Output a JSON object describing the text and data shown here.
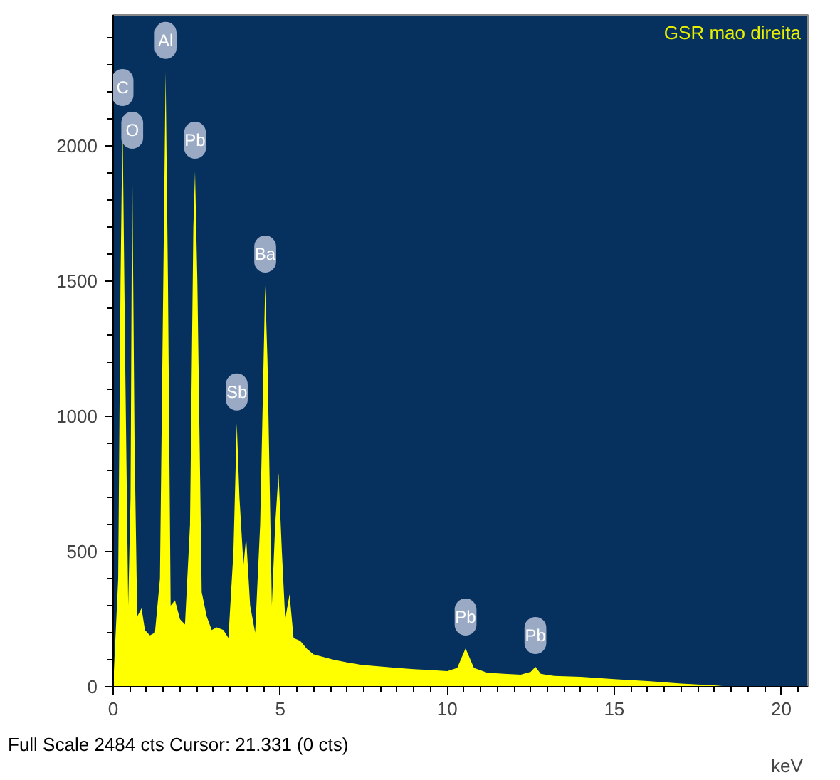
{
  "chart_data": {
    "type": "area",
    "title": "GSR mao direita",
    "xlabel": "keV",
    "annotations": [
      {
        "text": "C",
        "x": 0.28,
        "y": 2100
      },
      {
        "text": "O",
        "x": 0.57,
        "y": 1942
      },
      {
        "text": "Al",
        "x": 1.57,
        "y": 2274
      },
      {
        "text": "Pb",
        "x": 2.45,
        "y": 1905
      },
      {
        "text": "Sb",
        "x": 3.7,
        "y": 974
      },
      {
        "text": "Ba",
        "x": 4.55,
        "y": 1484
      },
      {
        "text": "Pb",
        "x": 10.55,
        "y": 142
      },
      {
        "text": "Pb",
        "x": 12.64,
        "y": 74
      },
      "Full Scale 2484 cts Cursor: 21.331  (0 cts)"
    ],
    "x": [
      0.0,
      0.15,
      0.22,
      0.28,
      0.36,
      0.45,
      0.52,
      0.57,
      0.64,
      0.72,
      0.85,
      0.95,
      1.1,
      1.25,
      1.4,
      1.5,
      1.57,
      1.64,
      1.72,
      1.85,
      2.0,
      2.15,
      2.3,
      2.4,
      2.45,
      2.52,
      2.65,
      2.8,
      2.95,
      3.1,
      3.3,
      3.45,
      3.6,
      3.7,
      3.78,
      3.9,
      3.98,
      4.1,
      4.25,
      4.4,
      4.55,
      4.62,
      4.75,
      4.85,
      4.95,
      5.05,
      5.15,
      5.28,
      5.4,
      5.6,
      5.8,
      6.0,
      6.3,
      6.6,
      7.0,
      7.5,
      8.0,
      8.5,
      9.0,
      9.5,
      10.0,
      10.3,
      10.55,
      10.8,
      11.2,
      11.7,
      12.2,
      12.5,
      12.64,
      12.8,
      13.2,
      14.0,
      15.0,
      16.0,
      17.0,
      18.0,
      18.5,
      20.8
    ],
    "series": [
      {
        "color": "#ffff00",
        "values": [
          0,
          400,
          1500,
          2100,
          1200,
          300,
          700,
          1942,
          900,
          260,
          290,
          210,
          190,
          200,
          400,
          1500,
          2274,
          1500,
          300,
          320,
          250,
          230,
          600,
          1700,
          1905,
          1500,
          350,
          260,
          210,
          220,
          210,
          180,
          500,
          974,
          700,
          450,
          553,
          300,
          200,
          600,
          1484,
          1200,
          300,
          600,
          790,
          500,
          250,
          342,
          180,
          170,
          140,
          120,
          110,
          100,
          90,
          80,
          75,
          70,
          65,
          62,
          58,
          70,
          142,
          70,
          52,
          48,
          45,
          55,
          74,
          48,
          40,
          37,
          28,
          21,
          12,
          5,
          0,
          0
        ]
      }
    ],
    "xlim": [
      0,
      20.8
    ],
    "ylim": [
      0,
      2484
    ],
    "xticks": [
      0,
      5,
      10,
      15,
      20
    ],
    "yticks": [
      0,
      500,
      1000,
      1500,
      2000
    ],
    "grid": false
  }
}
